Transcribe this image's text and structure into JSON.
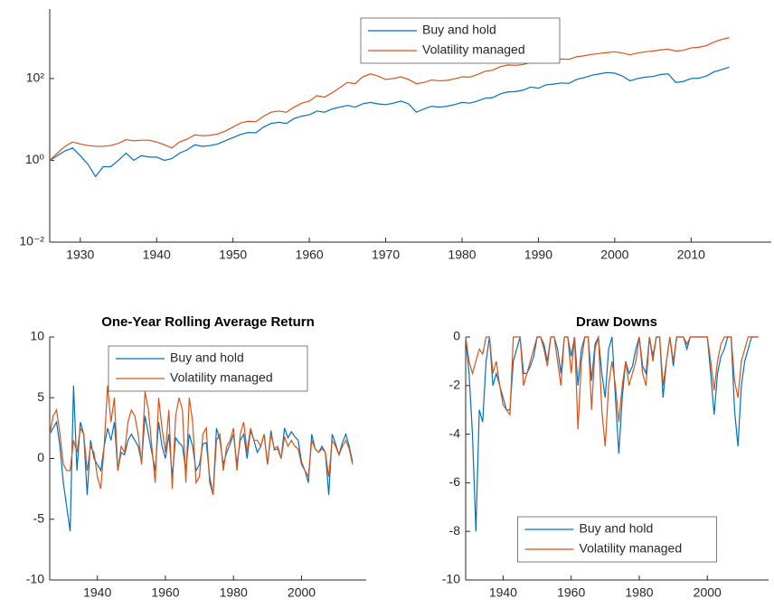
{
  "chart_data": [
    {
      "type": "line",
      "log_y": true,
      "legend": "upper center",
      "grid": false,
      "x": [
        1926,
        1927,
        1928,
        1929,
        1930,
        1931,
        1932,
        1933,
        1934,
        1935,
        1936,
        1937,
        1938,
        1939,
        1940,
        1941,
        1942,
        1943,
        1944,
        1945,
        1946,
        1947,
        1948,
        1949,
        1950,
        1951,
        1952,
        1953,
        1954,
        1955,
        1956,
        1957,
        1958,
        1959,
        1960,
        1961,
        1962,
        1963,
        1964,
        1965,
        1966,
        1967,
        1968,
        1969,
        1970,
        1971,
        1972,
        1973,
        1974,
        1975,
        1976,
        1977,
        1978,
        1979,
        1980,
        1981,
        1982,
        1983,
        1984,
        1985,
        1986,
        1987,
        1988,
        1989,
        1990,
        1991,
        1992,
        1993,
        1994,
        1995,
        1996,
        1997,
        1998,
        1999,
        2000,
        2001,
        2002,
        2003,
        2004,
        2005,
        2006,
        2007,
        2008,
        2009,
        2010,
        2011,
        2012,
        2013,
        2014,
        2015
      ],
      "series": [
        {
          "name": "Buy and hold",
          "color": "#0072bd",
          "values": [
            1.0,
            1.3,
            1.7,
            2.0,
            1.3,
            0.8,
            0.4,
            0.7,
            0.7,
            1.0,
            1.5,
            1.0,
            1.3,
            1.2,
            1.2,
            1.0,
            1.1,
            1.5,
            1.8,
            2.4,
            2.2,
            2.3,
            2.5,
            3.0,
            3.6,
            4.3,
            4.8,
            4.7,
            6.5,
            8,
            8.5,
            8,
            10.5,
            12,
            13,
            16,
            15,
            18,
            20,
            22,
            20,
            24,
            26,
            24,
            23,
            25,
            28,
            24,
            15,
            18,
            21,
            20,
            21,
            23,
            26,
            25,
            28,
            33,
            34,
            42,
            47,
            48,
            52,
            62,
            58,
            70,
            73,
            78,
            76,
            95,
            105,
            120,
            130,
            140,
            135,
            115,
            88,
            100,
            108,
            112,
            125,
            130,
            80,
            85,
            100,
            102,
            115,
            145,
            165,
            190
          ]
        },
        {
          "name": "Volatility managed",
          "color": "#d95319",
          "values": [
            1.0,
            1.5,
            2.2,
            2.8,
            2.5,
            2.3,
            2.2,
            2.2,
            2.3,
            2.6,
            3.2,
            3.0,
            3.1,
            3.1,
            2.8,
            2.4,
            2.0,
            2.8,
            3.3,
            4.2,
            4.0,
            4.1,
            4.4,
            5.2,
            6.5,
            8.2,
            9.0,
            8.8,
            12,
            15,
            16,
            15,
            20,
            25,
            28,
            38,
            35,
            45,
            60,
            80,
            75,
            110,
            130,
            115,
            95,
            100,
            110,
            95,
            75,
            80,
            92,
            88,
            90,
            98,
            110,
            108,
            125,
            150,
            160,
            195,
            215,
            210,
            220,
            250,
            240,
            270,
            285,
            300,
            295,
            340,
            360,
            390,
            410,
            430,
            450,
            420,
            380,
            420,
            450,
            470,
            500,
            520,
            470,
            490,
            560,
            580,
            640,
            780,
            900,
            1000
          ]
        }
      ],
      "xlim": [
        1926,
        2020.5
      ],
      "xticks": [
        1930,
        1940,
        1950,
        1960,
        1970,
        1980,
        1990,
        2000,
        2010
      ],
      "ylim": [
        0.01,
        5000
      ],
      "yticks": [
        {
          "value": 0.01,
          "label": "10⁻²"
        },
        {
          "value": 1,
          "label": "10⁰"
        },
        {
          "value": 100,
          "label": "10²"
        }
      ]
    },
    {
      "type": "line",
      "title": "One-Year Rolling Average Return",
      "legend": "upper center",
      "grid": false,
      "x": [
        1926,
        1927,
        1928,
        1929,
        1930,
        1931,
        1932,
        1933,
        1934,
        1935,
        1936,
        1937,
        1938,
        1939,
        1940,
        1941,
        1942,
        1943,
        1944,
        1945,
        1946,
        1947,
        1948,
        1949,
        1950,
        1951,
        1952,
        1953,
        1954,
        1955,
        1956,
        1957,
        1958,
        1959,
        1960,
        1961,
        1962,
        1963,
        1964,
        1965,
        1966,
        1967,
        1968,
        1969,
        1970,
        1971,
        1972,
        1973,
        1974,
        1975,
        1976,
        1977,
        1978,
        1979,
        1980,
        1981,
        1982,
        1983,
        1984,
        1985,
        1986,
        1987,
        1988,
        1989,
        1990,
        1991,
        1992,
        1993,
        1994,
        1995,
        1996,
        1997,
        1998,
        1999,
        2000,
        2001,
        2002,
        2003,
        2004,
        2005,
        2006,
        2007,
        2008,
        2009,
        2010,
        2011,
        2012,
        2013,
        2014,
        2015
      ],
      "series": [
        {
          "name": "Buy and hold",
          "color": "#0072bd",
          "values": [
            2,
            2.5,
            3,
            1,
            -2,
            -4,
            -6,
            6,
            -1,
            3,
            2,
            -3,
            1.5,
            0,
            -0.5,
            -1,
            1,
            2.5,
            1.5,
            3,
            -1,
            0.5,
            0.3,
            1.5,
            2,
            1.5,
            1,
            -0.3,
            3.5,
            2,
            0.5,
            -1,
            3,
            1,
            0,
            2,
            -1.5,
            1.7,
            1.3,
            1,
            -1,
            2,
            1,
            -1,
            -0.5,
            1.2,
            1.3,
            -1.5,
            -3,
            2.5,
            1.5,
            -0.5,
            0.5,
            1.2,
            2,
            -0.5,
            1.5,
            2,
            0,
            2.3,
            1.5,
            0.5,
            1,
            2,
            -0.5,
            2.3,
            0.7,
            0.8,
            0,
            2.5,
            1.7,
            2.2,
            1.8,
            1.5,
            -0.3,
            -1,
            -2,
            2,
            0.8,
            0.5,
            1,
            0.5,
            -3,
            2,
            1.2,
            0.3,
            1.3,
            2,
            1,
            -0.3
          ]
        },
        {
          "name": "Volatility managed",
          "color": "#d95319",
          "values": [
            2,
            3.5,
            4,
            2,
            -0.5,
            -1,
            -1,
            1.5,
            0.5,
            2.5,
            2,
            -1,
            1,
            0.5,
            -1.5,
            -2.5,
            1,
            6,
            3,
            5,
            -1,
            1,
            0.5,
            3,
            4,
            3.5,
            2,
            -0.5,
            5.5,
            4,
            1,
            -2,
            5,
            2.5,
            0.5,
            4,
            -2.5,
            3.5,
            5,
            4,
            -2,
            5,
            3,
            -2,
            -1.5,
            2,
            2.5,
            -2,
            -3,
            1.5,
            2,
            -1,
            1,
            1.5,
            2.5,
            -1,
            2,
            3,
            0.5,
            2.5,
            1.5,
            1.5,
            1,
            2,
            -0.5,
            2,
            0.8,
            1,
            0,
            1.8,
            1,
            1.5,
            1,
            0.8,
            -0.5,
            -1,
            -1.5,
            1.5,
            0.8,
            0.5,
            0.8,
            0.5,
            -1.5,
            1.5,
            1,
            0.3,
            1,
            1.5,
            0.8,
            -0.5
          ]
        }
      ],
      "xlim": [
        1926,
        2019
      ],
      "xticks": [
        1940,
        1960,
        1980,
        2000
      ],
      "ylim": [
        -10,
        10
      ],
      "yticks": [
        -10,
        -5,
        0,
        5,
        10
      ]
    },
    {
      "type": "line",
      "title": "Draw Downs",
      "legend": "lower center",
      "grid": false,
      "x": [
        1929,
        1930,
        1931,
        1932,
        1933,
        1934,
        1935,
        1936,
        1937,
        1938,
        1939,
        1940,
        1941,
        1942,
        1943,
        1944,
        1945,
        1946,
        1947,
        1948,
        1949,
        1950,
        1951,
        1952,
        1953,
        1954,
        1955,
        1956,
        1957,
        1958,
        1959,
        1960,
        1961,
        1962,
        1963,
        1964,
        1965,
        1966,
        1967,
        1968,
        1969,
        1970,
        1971,
        1972,
        1973,
        1974,
        1975,
        1976,
        1977,
        1978,
        1979,
        1980,
        1981,
        1982,
        1983,
        1984,
        1985,
        1986,
        1987,
        1988,
        1989,
        1990,
        1991,
        1992,
        1993,
        1994,
        1995,
        1996,
        1997,
        1998,
        1999,
        2000,
        2001,
        2002,
        2003,
        2004,
        2005,
        2006,
        2007,
        2008,
        2009,
        2010,
        2011,
        2012,
        2013,
        2014,
        2015
      ],
      "series": [
        {
          "name": "Buy and hold",
          "color": "#0072bd",
          "values": [
            0,
            -1.5,
            -4,
            -8,
            -3,
            -3.5,
            -1,
            0,
            -2,
            -1.5,
            -2,
            -2.5,
            -3,
            -3,
            -1,
            -0.5,
            0,
            -1.5,
            -1.5,
            -1.2,
            -0.8,
            0,
            0,
            -0.3,
            -1,
            0,
            0,
            -0.5,
            -1.5,
            0,
            0,
            -0.8,
            0,
            -2,
            -0.5,
            0,
            0,
            -1.8,
            -0.3,
            0,
            -1.5,
            -2.5,
            -0.5,
            0,
            -2.5,
            -4.8,
            -2.5,
            -1,
            -1.5,
            -1.2,
            -0.5,
            0,
            -1.2,
            -1.5,
            0,
            -0.8,
            0,
            0,
            -2.5,
            -1,
            0,
            -1.2,
            0,
            0,
            0,
            -0.5,
            0,
            0,
            0,
            0,
            0,
            0,
            -1.5,
            -3.2,
            -1.5,
            -0.8,
            -0.5,
            0,
            0,
            -3,
            -4.5,
            -2,
            -1,
            -0.5,
            0,
            0,
            0
          ]
        },
        {
          "name": "Volatility managed",
          "color": "#d95319",
          "values": [
            0,
            -1,
            -1.5,
            -1,
            -0.5,
            -0.7,
            0,
            0,
            -1.5,
            -1,
            -2,
            -2.8,
            -3,
            -3.2,
            0,
            0,
            0,
            -2,
            -1.5,
            -1,
            -0.5,
            0,
            0,
            -0.5,
            -1.2,
            0,
            0,
            -1,
            -2,
            0,
            0,
            -1.5,
            0,
            -3.8,
            -1,
            0,
            0,
            -3,
            -0.5,
            0,
            -3,
            -4.5,
            -2,
            -1,
            -2,
            -3.5,
            -2,
            -1,
            -2,
            -1.5,
            -1,
            0,
            -1.5,
            -2,
            0,
            -1,
            0,
            0,
            -2,
            -1,
            0,
            -1,
            0,
            0,
            0,
            -0.3,
            0,
            0,
            0,
            0,
            0,
            0,
            -1,
            -2.2,
            -1,
            -0.3,
            0,
            0,
            0,
            -1.8,
            -2.5,
            -1,
            -0.5,
            0,
            0,
            0,
            0
          ]
        }
      ],
      "xlim": [
        1929,
        2018
      ],
      "xticks": [
        1940,
        1960,
        1980,
        2000
      ],
      "ylim": [
        -10,
        0
      ],
      "yticks": [
        -10,
        -8,
        -6,
        -4,
        -2,
        0
      ]
    }
  ]
}
